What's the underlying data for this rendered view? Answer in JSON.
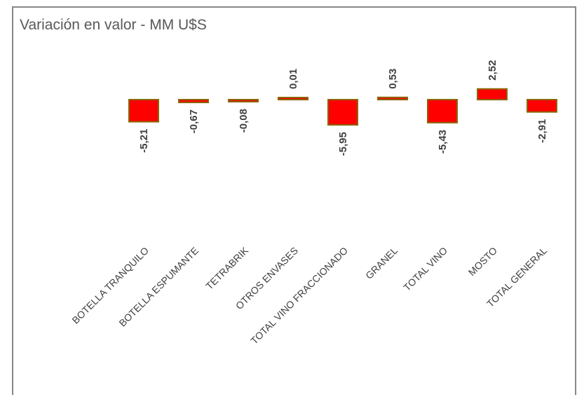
{
  "chart_data": {
    "type": "bar",
    "title": "Variación en valor - MM U$S",
    "categories": [
      "BOTELLA TRANQUILO",
      "BOTELLA ESPUMANTE",
      "TETRABRIK",
      "OTROS ENVASES",
      "TOTAL VINO FRACCIONADO",
      "GRANEL",
      "TOTAL VINO",
      "MOSTO",
      "TOTAL GENERAL"
    ],
    "values": [
      -5.21,
      -0.67,
      -0.08,
      0.01,
      -5.95,
      0.53,
      -5.43,
      2.52,
      -2.91
    ],
    "value_labels": [
      "-5,21",
      "-0,67",
      "-0,08",
      "0,01",
      "-5,95",
      "0,53",
      "-5,43",
      "2,52",
      "-2,91"
    ],
    "color": "#ff0000",
    "edge_color": "#8b6508"
  }
}
